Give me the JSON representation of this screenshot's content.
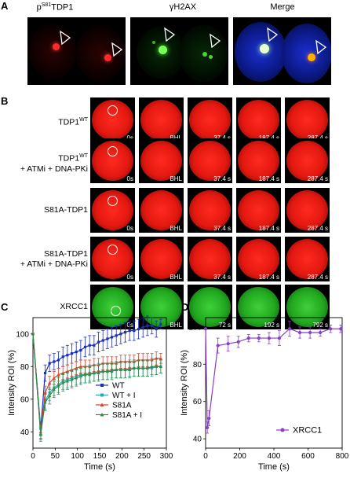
{
  "panels": {
    "a": "A",
    "b": "B",
    "c": "C",
    "d": "D"
  },
  "panel_a": {
    "headers": {
      "ptdp1_pre": "p",
      "ptdp1_sup": "S81",
      "ptdp1_post": "TDP1",
      "gh2ax": "γH2AX",
      "merge": "Merge"
    }
  },
  "panel_b": {
    "rows": [
      {
        "line1": "TDP1",
        "sup": "WT",
        "line2": "",
        "color": "red",
        "times": [
          "0s",
          "BHL",
          "37.4 s",
          "187.4 s",
          "287.4 s"
        ]
      },
      {
        "line1": "TDP1",
        "sup": "WT",
        "line2": "+ ATMi + DNA-PKi",
        "color": "red",
        "times": [
          "0s",
          "BHL",
          "37.4 s",
          "187.4 s",
          "287.4 s"
        ]
      },
      {
        "line1": "S81A-TDP1",
        "sup": "",
        "line2": "",
        "color": "red",
        "times": [
          "0s",
          "BHL",
          "37.4 s",
          "187.4 s",
          "287.4 s"
        ]
      },
      {
        "line1": "S81A-TDP1",
        "sup": "",
        "line2": "+ ATMi + DNA-PKi",
        "color": "red",
        "times": [
          "0s",
          "BHL",
          "37.4 s",
          "187.4 s",
          "287.4 s"
        ]
      },
      {
        "line1": "XRCC1",
        "sup": "",
        "line2": "",
        "color": "green",
        "times": [
          "0s",
          "BHL",
          "72 s",
          "192 s",
          "792 s"
        ]
      }
    ]
  },
  "chart_data": [
    {
      "type": "line",
      "xlabel": "Time (s)",
      "ylabel": "Intensity ROI (%)",
      "xlim": [
        0,
        300
      ],
      "ylim": [
        30,
        110
      ],
      "xticks": [
        "0",
        "50",
        "100",
        "150",
        "200",
        "250",
        "300"
      ],
      "yticks": [
        "40",
        "60",
        "80",
        "100"
      ],
      "legend_position": "bottom-right",
      "x": [
        0,
        17.4,
        27.4,
        37.4,
        47.4,
        57.4,
        67.4,
        77.4,
        87.4,
        97.4,
        107.4,
        117.4,
        127.4,
        137.4,
        147.4,
        157.4,
        167.4,
        177.4,
        187.4,
        197.4,
        207.4,
        217.4,
        227.4,
        237.4,
        247.4,
        257.4,
        267.4,
        277.4,
        287.4
      ],
      "series": [
        {
          "name": "WT",
          "color": "#1a2fb8",
          "marker": "square",
          "values": [
            100,
            42,
            76,
            82,
            83,
            84,
            86,
            87,
            88,
            89,
            90,
            92,
            93,
            93,
            95,
            96,
            97,
            98,
            99,
            100,
            101,
            102,
            102,
            103,
            104,
            105,
            105,
            103,
            106
          ],
          "errors": [
            0,
            4,
            5,
            5,
            5,
            5,
            6,
            6,
            6,
            6,
            6,
            6,
            6,
            6,
            6,
            6,
            6,
            6,
            6,
            6,
            6,
            6,
            6,
            6,
            6,
            6,
            5,
            5,
            3
          ]
        },
        {
          "name": "WT + I",
          "color": "#2aa8b0",
          "marker": "square",
          "values": [
            100,
            38,
            59,
            64,
            67,
            69,
            71,
            72,
            73,
            74,
            75,
            75,
            76,
            76,
            77,
            77,
            77,
            78,
            78,
            78,
            78,
            79,
            79,
            79,
            79,
            79,
            79,
            80,
            80
          ],
          "errors": [
            0,
            4,
            5,
            5,
            5,
            5,
            5,
            5,
            5,
            5,
            5,
            5,
            5,
            5,
            5,
            5,
            5,
            5,
            5,
            5,
            5,
            5,
            5,
            5,
            5,
            5,
            5,
            5,
            4
          ]
        },
        {
          "name": "S81A",
          "color": "#d9442b",
          "marker": "triangle",
          "values": [
            100,
            40,
            64,
            70,
            73,
            75,
            76,
            77,
            78,
            79,
            80,
            80,
            80,
            81,
            81,
            82,
            82,
            82,
            82,
            83,
            83,
            83,
            83,
            84,
            84,
            84,
            84,
            85,
            85
          ],
          "errors": [
            0,
            4,
            4,
            4,
            4,
            4,
            4,
            4,
            4,
            4,
            4,
            4,
            4,
            4,
            4,
            4,
            4,
            4,
            4,
            4,
            4,
            4,
            4,
            4,
            4,
            4,
            4,
            4,
            3
          ]
        },
        {
          "name": "S81A + I",
          "color": "#2e8c4a",
          "marker": "triangle",
          "values": [
            100,
            39,
            58,
            62,
            66,
            68,
            70,
            71,
            72,
            73,
            74,
            75,
            75,
            76,
            76,
            77,
            77,
            77,
            78,
            78,
            78,
            78,
            79,
            79,
            79,
            79,
            80,
            80,
            80
          ],
          "errors": [
            0,
            4,
            5,
            5,
            5,
            5,
            5,
            5,
            5,
            5,
            5,
            5,
            5,
            5,
            5,
            5,
            5,
            5,
            5,
            5,
            5,
            5,
            5,
            5,
            5,
            5,
            5,
            5,
            4
          ]
        }
      ]
    },
    {
      "type": "line",
      "xlabel": "Time (s)",
      "ylabel": "Intensity ROI (%)",
      "xlim": [
        0,
        800
      ],
      "ylim": [
        35,
        105
      ],
      "xticks": [
        "0",
        "200",
        "400",
        "600",
        "800"
      ],
      "yticks": [
        "40",
        "60",
        "80",
        "100"
      ],
      "legend_position": "bottom-right",
      "x": [
        0,
        10,
        20,
        72,
        132,
        192,
        252,
        312,
        372,
        432,
        492,
        552,
        612,
        672,
        732,
        792
      ],
      "series": [
        {
          "name": "XRCC1",
          "color": "#8a3fc7",
          "marker": "circle",
          "values": [
            99,
            46,
            51,
            90,
            91,
            92,
            94,
            94,
            94,
            94,
            99,
            97,
            97,
            97,
            99,
            99
          ],
          "errors": [
            0,
            3,
            4,
            4,
            4,
            3,
            2,
            2,
            3,
            4,
            4,
            3,
            3,
            2,
            2,
            2
          ]
        }
      ]
    }
  ]
}
